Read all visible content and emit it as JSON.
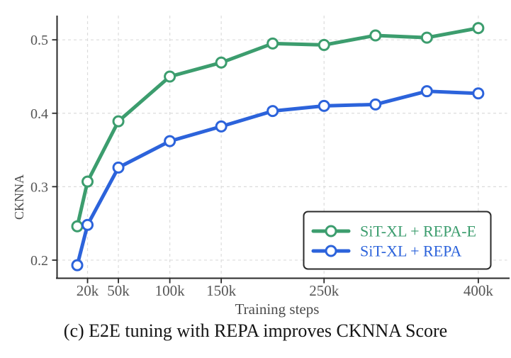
{
  "figure": {
    "caption": "(c) E2E tuning with REPA improves CKNNA Score"
  },
  "chart_data": {
    "type": "line",
    "title": "",
    "xlabel": "Training steps",
    "ylabel": "CKNNA",
    "x_unit": "thousands of training steps",
    "x": [
      10,
      20,
      50,
      100,
      150,
      200,
      250,
      300,
      350,
      400
    ],
    "series": [
      {
        "name": "SiT-XL + REPA-E",
        "color": "#3c9d6e",
        "values": [
          0.246,
          0.307,
          0.389,
          0.45,
          0.469,
          0.495,
          0.493,
          0.506,
          0.503,
          0.516
        ]
      },
      {
        "name": "SiT-XL + REPA",
        "color": "#2c63db",
        "values": [
          0.193,
          0.248,
          0.326,
          0.362,
          0.382,
          0.403,
          0.41,
          0.412,
          0.43,
          0.427
        ]
      }
    ],
    "x_ticks": [
      {
        "value": 20,
        "label": "20k"
      },
      {
        "value": 50,
        "label": "50k"
      },
      {
        "value": 100,
        "label": "100k"
      },
      {
        "value": 150,
        "label": "150k"
      },
      {
        "value": 250,
        "label": "250k"
      },
      {
        "value": 400,
        "label": "400k"
      }
    ],
    "y_ticks": [
      {
        "value": 0.2,
        "label": "0.2"
      },
      {
        "value": 0.3,
        "label": "0.3"
      },
      {
        "value": 0.4,
        "label": "0.4"
      },
      {
        "value": 0.5,
        "label": "0.5"
      }
    ],
    "xlim": [
      -10,
      428
    ],
    "ylim": [
      0.1753,
      0.533
    ],
    "grid": "dashed gridlines at labeled ticks only",
    "legend_position": "lower right",
    "marker": "open circle"
  },
  "style": {
    "grid_color": "#dcdcdc",
    "spine_color": "#2a2a2a",
    "tick_label_color": "#555555",
    "axis_label_color": "#4c4c4c",
    "legend_border_color": "#2b2b2b",
    "background": "#ffffff"
  }
}
